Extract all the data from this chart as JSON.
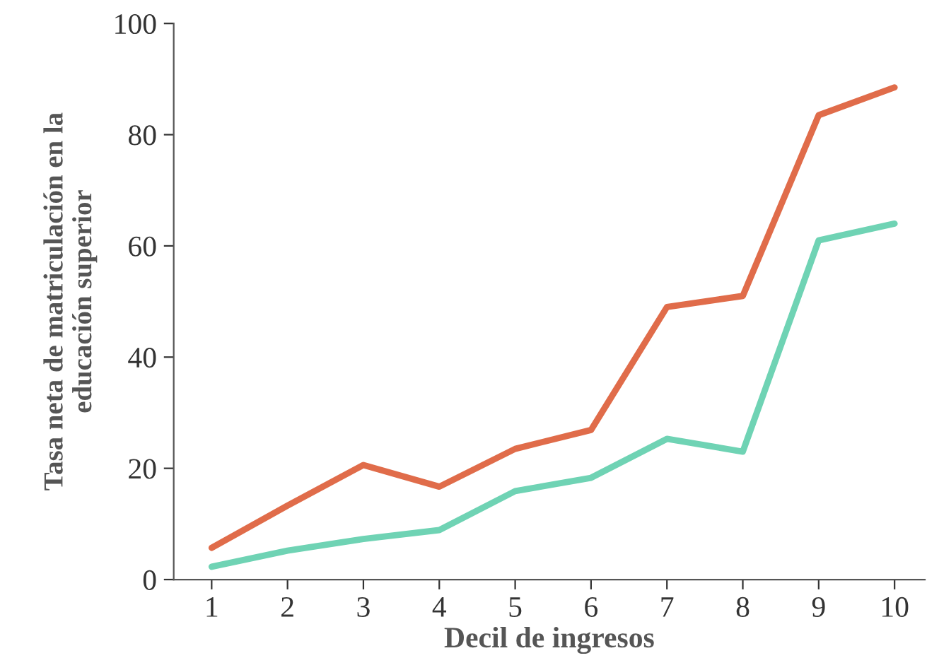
{
  "chart_data": {
    "type": "line",
    "xlabel": "Decil de ingresos",
    "ylabel": "Tasa neta de matriculación en la\neducación superior",
    "x": [
      1,
      2,
      3,
      4,
      5,
      6,
      7,
      8,
      9,
      10
    ],
    "xlim": [
      0.5,
      10.4
    ],
    "xticks": [
      1,
      2,
      3,
      4,
      5,
      6,
      7,
      8,
      9,
      10
    ],
    "ylim": [
      0,
      100
    ],
    "yticks": [
      0,
      20,
      40,
      60,
      80,
      100
    ],
    "grid": false,
    "legend": false,
    "marker": "none",
    "line_style": "solid",
    "series": [
      {
        "color": "#e06c4a",
        "values": [
          5.7,
          13.3,
          20.6,
          16.7,
          23.5,
          26.9,
          49,
          51,
          83.5,
          88.5
        ]
      },
      {
        "color": "#6fd3b4",
        "values": [
          2.3,
          5.2,
          7.3,
          8.9,
          15.9,
          18.3,
          25.3,
          23,
          61,
          64
        ]
      }
    ]
  }
}
